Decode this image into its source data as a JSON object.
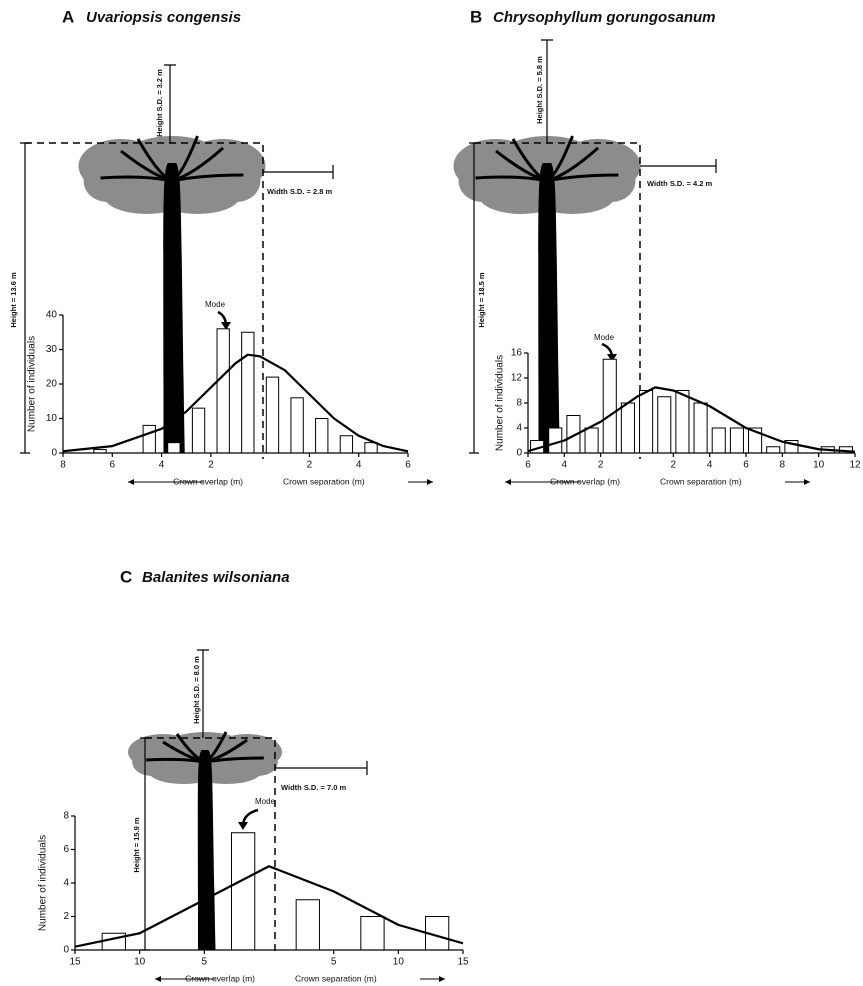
{
  "chart_data": [
    {
      "type": "bar",
      "panel": "A",
      "title": "Uvariopsis congensis",
      "y_label": "Number of individuals",
      "x_label_left": "Crown overlap (m)",
      "x_label_right": "Crown separation (m)",
      "annotations": {
        "mode": "Mode",
        "height_sd": "Height S.D. = 3.2 m",
        "width_sd": "Width S.D. = 2.8 m",
        "height": "Height = 13.6 m"
      },
      "x": [
        -7.5,
        -6.5,
        -5.5,
        -4.5,
        -3.5,
        -2.5,
        -1.5,
        -0.5,
        0.5,
        1.5,
        2.5,
        3.5,
        4.5,
        5.5
      ],
      "values": [
        0,
        1,
        0,
        8,
        3,
        13,
        36,
        35,
        22,
        16,
        10,
        5,
        3,
        0
      ],
      "curve": {
        "x": [
          -8,
          -6,
          -4,
          -3,
          -2,
          -1,
          -0.5,
          0,
          1,
          2,
          3,
          4,
          5,
          6
        ],
        "values": [
          0.5,
          2,
          7,
          12,
          19,
          26,
          28.5,
          28,
          24,
          17,
          10,
          5,
          2,
          0.5
        ]
      },
      "xlim": [
        -8,
        6
      ],
      "ylim": [
        0,
        40
      ],
      "xticks": [
        {
          "value": -8,
          "label": "8"
        },
        {
          "value": -6,
          "label": "6"
        },
        {
          "value": -4,
          "label": "4"
        },
        {
          "value": -2,
          "label": "2"
        },
        2,
        4,
        6
      ],
      "yticks": [
        0,
        10,
        20,
        30,
        40
      ]
    },
    {
      "type": "bar",
      "panel": "B",
      "title": "Chrysophyllum gorungosanum",
      "y_label": "Number of individuals",
      "x_label_left": "Crown overlap (m)",
      "x_label_right": "Crown separation (m)",
      "annotations": {
        "mode": "Mode",
        "height_sd": "Height S.D. = 5.8 m",
        "width_sd": "Width S.D. = 4.2 m",
        "height": "Height = 18.5 m"
      },
      "x": [
        -5.5,
        -4.5,
        -3.5,
        -2.5,
        -1.5,
        -0.5,
        0.5,
        1.5,
        2.5,
        3.5,
        4.5,
        5.5,
        6.5,
        7.5,
        8.5,
        9.5,
        10.5,
        11.5
      ],
      "values": [
        2,
        4,
        6,
        4,
        15,
        8,
        10,
        9,
        10,
        8,
        4,
        4,
        4,
        1,
        2,
        0,
        1,
        1
      ],
      "curve": {
        "x": [
          -6,
          -4,
          -2,
          0,
          1,
          2,
          4,
          6,
          8,
          10,
          12
        ],
        "values": [
          0.3,
          2,
          5,
          9,
          10.5,
          10,
          7.5,
          4,
          1.8,
          0.6,
          0.2
        ]
      },
      "xlim": [
        -6,
        12
      ],
      "ylim": [
        0,
        16
      ],
      "xticks": [
        {
          "value": -6,
          "label": "6"
        },
        {
          "value": -4,
          "label": "4"
        },
        {
          "value": -2,
          "label": "2"
        },
        2,
        4,
        6,
        8,
        10,
        12
      ],
      "yticks": [
        0,
        4,
        8,
        12,
        16
      ]
    },
    {
      "type": "bar",
      "panel": "C",
      "title": "Balanites wilsoniana",
      "y_label": "Number of individuals",
      "x_label_left": "Crown overlap (m)",
      "x_label_right": "Crown separation (m)",
      "annotations": {
        "mode": "Mode",
        "height_sd": "Height S.D. = 8.0 m",
        "width_sd": "Width S.D. = 7.0 m",
        "height": "Height = 15.9 m"
      },
      "x": [
        -12,
        -7,
        -2,
        3,
        8,
        13
      ],
      "values": [
        1,
        0,
        7,
        3,
        2,
        2
      ],
      "curve": {
        "x": [
          -15,
          -10,
          -5,
          0,
          5,
          10,
          15
        ],
        "values": [
          0.2,
          1,
          3,
          5,
          3.5,
          1.5,
          0.4
        ]
      },
      "xlim": [
        -15,
        15
      ],
      "ylim": [
        0,
        8
      ],
      "xticks": [
        {
          "value": -15,
          "label": "15"
        },
        {
          "value": -10,
          "label": "10"
        },
        {
          "value": -5,
          "label": "5"
        },
        5,
        10,
        15
      ],
      "yticks": [
        0,
        2,
        4,
        6,
        8
      ]
    }
  ]
}
